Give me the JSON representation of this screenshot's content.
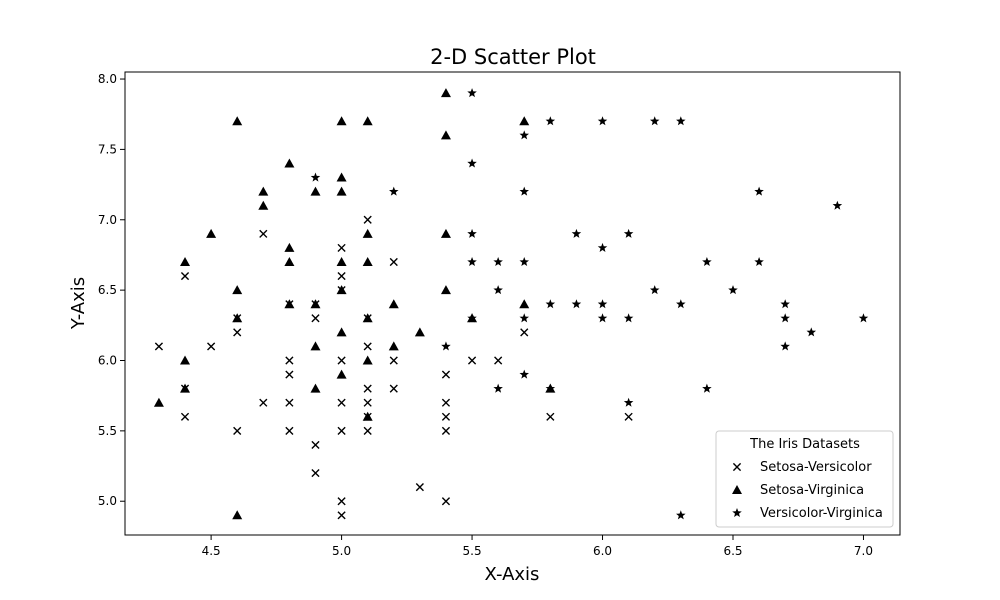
{
  "chart_data": {
    "type": "scatter",
    "title": "2-D Scatter Plot",
    "xlabel": "X-Axis",
    "ylabel": "Y-Axis",
    "xlim": [
      4.17,
      7.14
    ],
    "ylim": [
      4.76,
      8.05
    ],
    "xticks": [
      "4.5",
      "5.0",
      "5.5",
      "6.0",
      "6.5",
      "7.0"
    ],
    "yticks": [
      "5.0",
      "5.5",
      "6.0",
      "6.5",
      "7.0",
      "7.5",
      "8.0"
    ],
    "grid": false,
    "legend": {
      "title": "The Iris Datasets",
      "placement": "lower-right"
    },
    "series": [
      {
        "name": "Setosa-Versicolor",
        "marker": "x",
        "color": "#000000",
        "points": [
          [
            4.3,
            6.1
          ],
          [
            4.4,
            6.6
          ],
          [
            4.4,
            5.8
          ],
          [
            4.4,
            5.6
          ],
          [
            4.5,
            6.1
          ],
          [
            4.6,
            6.3
          ],
          [
            4.6,
            6.2
          ],
          [
            4.6,
            5.5
          ],
          [
            4.7,
            6.9
          ],
          [
            4.7,
            5.7
          ],
          [
            4.8,
            6.4
          ],
          [
            4.8,
            6.0
          ],
          [
            4.8,
            5.9
          ],
          [
            4.8,
            5.7
          ],
          [
            4.8,
            5.5
          ],
          [
            4.9,
            6.4
          ],
          [
            4.9,
            6.3
          ],
          [
            4.9,
            5.4
          ],
          [
            4.9,
            5.2
          ],
          [
            5.0,
            6.8
          ],
          [
            5.0,
            6.6
          ],
          [
            5.0,
            6.5
          ],
          [
            5.0,
            6.0
          ],
          [
            5.0,
            5.7
          ],
          [
            5.0,
            5.5
          ],
          [
            5.0,
            5.0
          ],
          [
            5.0,
            4.9
          ],
          [
            5.1,
            7.0
          ],
          [
            5.1,
            6.3
          ],
          [
            5.1,
            6.1
          ],
          [
            5.1,
            5.8
          ],
          [
            5.1,
            5.7
          ],
          [
            5.1,
            5.6
          ],
          [
            5.1,
            5.5
          ],
          [
            5.2,
            6.7
          ],
          [
            5.2,
            6.0
          ],
          [
            5.2,
            5.8
          ],
          [
            5.3,
            5.1
          ],
          [
            5.4,
            5.9
          ],
          [
            5.4,
            5.7
          ],
          [
            5.4,
            5.6
          ],
          [
            5.4,
            5.5
          ],
          [
            5.4,
            5.0
          ],
          [
            5.5,
            6.0
          ],
          [
            5.6,
            6.0
          ],
          [
            5.7,
            6.2
          ],
          [
            5.8,
            5.6
          ],
          [
            6.1,
            5.6
          ]
        ]
      },
      {
        "name": "Setosa-Virginica",
        "marker": "triangle",
        "color": "#000000",
        "points": [
          [
            4.3,
            5.7
          ],
          [
            4.4,
            6.7
          ],
          [
            4.4,
            6.0
          ],
          [
            4.4,
            5.8
          ],
          [
            4.5,
            6.9
          ],
          [
            4.6,
            7.7
          ],
          [
            4.6,
            6.5
          ],
          [
            4.6,
            6.3
          ],
          [
            4.6,
            4.9
          ],
          [
            4.7,
            7.2
          ],
          [
            4.7,
            7.1
          ],
          [
            4.8,
            7.4
          ],
          [
            4.8,
            6.8
          ],
          [
            4.8,
            6.7
          ],
          [
            4.8,
            6.4
          ],
          [
            4.9,
            7.2
          ],
          [
            4.9,
            6.4
          ],
          [
            4.9,
            6.1
          ],
          [
            4.9,
            5.8
          ],
          [
            5.0,
            7.7
          ],
          [
            5.0,
            7.3
          ],
          [
            5.0,
            7.2
          ],
          [
            5.0,
            6.7
          ],
          [
            5.0,
            6.5
          ],
          [
            5.0,
            6.2
          ],
          [
            5.0,
            5.9
          ],
          [
            5.1,
            7.7
          ],
          [
            5.1,
            6.9
          ],
          [
            5.1,
            6.7
          ],
          [
            5.1,
            6.3
          ],
          [
            5.1,
            6.0
          ],
          [
            5.1,
            5.6
          ],
          [
            5.2,
            6.4
          ],
          [
            5.2,
            6.1
          ],
          [
            5.3,
            6.2
          ],
          [
            5.4,
            7.9
          ],
          [
            5.4,
            7.6
          ],
          [
            5.4,
            6.9
          ],
          [
            5.4,
            6.5
          ],
          [
            5.5,
            6.3
          ],
          [
            5.7,
            7.7
          ],
          [
            5.7,
            6.4
          ],
          [
            5.8,
            5.8
          ]
        ]
      },
      {
        "name": "Versicolor-Virginica",
        "marker": "star",
        "color": "#000000",
        "points": [
          [
            4.9,
            7.3
          ],
          [
            5.2,
            7.2
          ],
          [
            5.4,
            6.1
          ],
          [
            5.5,
            7.9
          ],
          [
            5.5,
            7.4
          ],
          [
            5.5,
            6.9
          ],
          [
            5.5,
            6.7
          ],
          [
            5.5,
            6.3
          ],
          [
            5.6,
            6.7
          ],
          [
            5.6,
            6.5
          ],
          [
            5.6,
            5.8
          ],
          [
            5.7,
            7.6
          ],
          [
            5.7,
            7.2
          ],
          [
            5.7,
            6.7
          ],
          [
            5.7,
            6.3
          ],
          [
            5.7,
            5.9
          ],
          [
            5.8,
            7.7
          ],
          [
            5.8,
            6.4
          ],
          [
            5.8,
            5.8
          ],
          [
            5.9,
            6.9
          ],
          [
            5.9,
            6.4
          ],
          [
            6.0,
            7.7
          ],
          [
            6.0,
            6.8
          ],
          [
            6.0,
            6.4
          ],
          [
            6.0,
            6.3
          ],
          [
            6.1,
            6.9
          ],
          [
            6.1,
            6.3
          ],
          [
            6.1,
            5.7
          ],
          [
            6.2,
            7.7
          ],
          [
            6.2,
            6.5
          ],
          [
            6.3,
            7.7
          ],
          [
            6.3,
            6.4
          ],
          [
            6.3,
            4.9
          ],
          [
            6.4,
            6.7
          ],
          [
            6.4,
            5.8
          ],
          [
            6.5,
            6.5
          ],
          [
            6.6,
            7.2
          ],
          [
            6.6,
            6.7
          ],
          [
            6.7,
            6.4
          ],
          [
            6.7,
            6.3
          ],
          [
            6.7,
            6.1
          ],
          [
            6.8,
            6.2
          ],
          [
            6.9,
            7.1
          ],
          [
            7.0,
            6.3
          ]
        ]
      }
    ]
  }
}
